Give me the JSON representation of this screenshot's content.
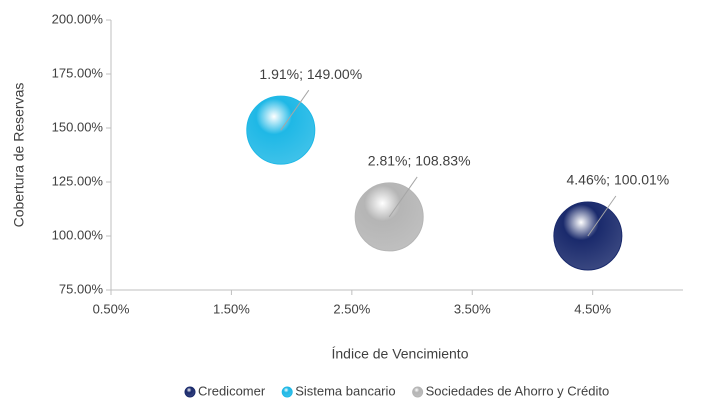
{
  "chart_data": {
    "type": "bubble",
    "xlabel": "Índice de Vencimiento",
    "ylabel": "Cobertura de Reservas",
    "xlim": [
      0.5,
      5.25
    ],
    "ylim": [
      75,
      200
    ],
    "xticks": [
      {
        "value": 0.5,
        "label": "0.50%"
      },
      {
        "value": 1.5,
        "label": "1.50%"
      },
      {
        "value": 2.5,
        "label": "2.50%"
      },
      {
        "value": 3.5,
        "label": "3.50%"
      },
      {
        "value": 4.5,
        "label": "4.50%"
      }
    ],
    "yticks": [
      {
        "value": 75,
        "label": "75.00%"
      },
      {
        "value": 100,
        "label": "100.00%"
      },
      {
        "value": 125,
        "label": "125.00%"
      },
      {
        "value": 150,
        "label": "150.00%"
      },
      {
        "value": 175,
        "label": "175.00%"
      },
      {
        "value": 200,
        "label": "200.00%"
      }
    ],
    "grid": false,
    "legend": "bottom",
    "series": [
      {
        "name": "Credicomer",
        "color": "#1a2a6c",
        "x": [
          4.46
        ],
        "values": [
          100.01
        ],
        "value_labels": [
          "4.46%; 100.01%"
        ]
      },
      {
        "name": "Sistema bancario",
        "color": "#1fb8e6",
        "x": [
          1.91
        ],
        "values": [
          149.0
        ],
        "value_labels": [
          "1.91%; 149.00%"
        ]
      },
      {
        "name": "Sociedades de Ahorro y Crédito",
        "color": "#b5b5b5",
        "x": [
          2.81
        ],
        "values": [
          108.83
        ],
        "value_labels": [
          "2.81%; 108.83%"
        ]
      }
    ]
  }
}
